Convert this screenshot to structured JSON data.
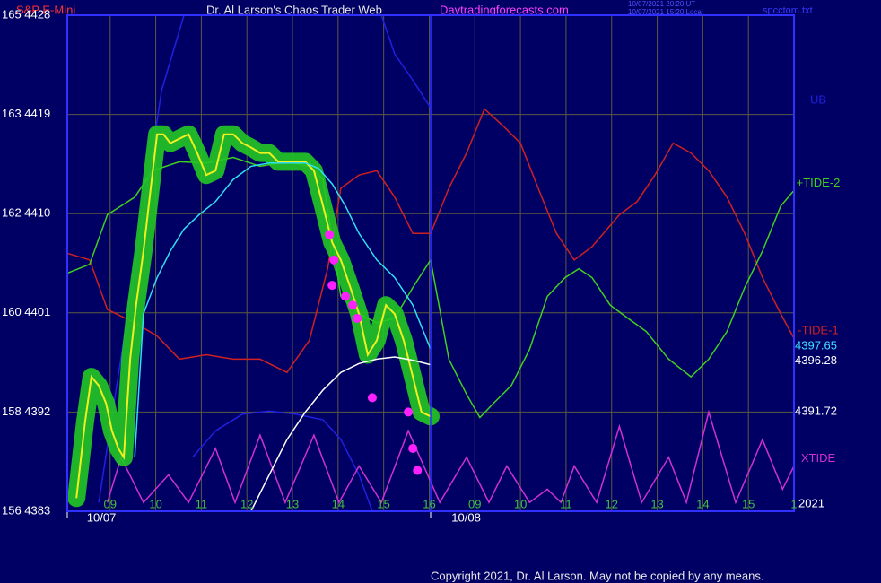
{
  "chart_data": {
    "type": "line",
    "instrument": "S&P E-Mini",
    "title": "Dr. Al Larson's Chaos Trader Web",
    "website": "Daytradingforecasts.com",
    "timestamps": [
      "10/07/2021 20:20 UT",
      "10/07/2021 15:20 Local"
    ],
    "file": "spcctom.txt",
    "copyright": "Copyright 2021, Dr. Al Larson. May not be copied by any means.",
    "year_label": "2021",
    "day_labels": [
      "10/07",
      "10/08"
    ],
    "grid": true,
    "xlim": [
      0.06,
      16
    ],
    "ylim": [
      4383,
      4428
    ],
    "xticks": [
      {
        "value": 1,
        "label": "09"
      },
      {
        "value": 2,
        "label": "10"
      },
      {
        "value": 3,
        "label": "11"
      },
      {
        "value": 4,
        "label": "12"
      },
      {
        "value": 5,
        "label": "13"
      },
      {
        "value": 6,
        "label": "14"
      },
      {
        "value": 7,
        "label": "15"
      },
      {
        "value": 8,
        "label": "16"
      },
      {
        "value": 9,
        "label": "09"
      },
      {
        "value": 10,
        "label": "10"
      },
      {
        "value": 11,
        "label": "11"
      },
      {
        "value": 12,
        "label": "12"
      },
      {
        "value": 13,
        "label": "13"
      },
      {
        "value": 14,
        "label": "14"
      },
      {
        "value": 15,
        "label": "15"
      },
      {
        "value": 16,
        "label": "1"
      }
    ],
    "yticks": [
      {
        "value": 4383,
        "label": "156 4383"
      },
      {
        "value": 4392,
        "label": "158 4392"
      },
      {
        "value": 4401,
        "label": "160 4401"
      },
      {
        "value": 4410,
        "label": "162 4410"
      },
      {
        "value": 4419,
        "label": "163 4419"
      },
      {
        "value": 4428,
        "label": "165 4428"
      }
    ],
    "series": [
      {
        "name": "-TIDE-1",
        "color": "#d02020",
        "x": [
          0.06,
          0.55,
          0.94,
          1.54,
          2.03,
          2.52,
          3.11,
          3.7,
          4.29,
          4.88,
          5.37,
          5.77,
          6.06,
          6.46,
          6.85,
          7.24,
          7.64,
          8.03,
          8.43,
          8.82,
          9.21,
          9.61,
          10.0,
          10.39,
          10.79,
          11.18,
          11.57,
          12.17,
          12.56,
          12.95,
          13.35,
          13.74,
          14.13,
          14.53,
          14.92,
          15.31,
          15.71,
          16.0
        ],
        "values": [
          4406.4,
          4405.8,
          4401.3,
          4400.1,
          4398.9,
          4396.8,
          4397.2,
          4396.8,
          4396.8,
          4395.6,
          4398.5,
          4405.0,
          4412.3,
          4413.5,
          4413.9,
          4411.5,
          4408.2,
          4408.2,
          4412.3,
          4415.5,
          4419.5,
          4418.0,
          4416.4,
          4412.3,
          4408.2,
          4405.8,
          4407.0,
          4409.9,
          4411.1,
          4413.5,
          4416.4,
          4415.5,
          4413.9,
          4411.5,
          4408.2,
          4404.2,
          4400.9,
          4398.7
        ]
      },
      {
        "name": "+TIDE-2",
        "color": "#40d020",
        "x": [
          0.06,
          0.55,
          0.94,
          1.54,
          1.93,
          2.52,
          3.11,
          3.7,
          4.29,
          4.88,
          5.37,
          5.67,
          6.06,
          6.46,
          6.85,
          7.24,
          7.64,
          8.03,
          8.43,
          8.82,
          9.11,
          9.41,
          9.8,
          10.2,
          10.59,
          10.98,
          11.28,
          11.57,
          11.97,
          12.36,
          12.76,
          13.25,
          13.74,
          14.13,
          14.53,
          14.92,
          15.31,
          15.71,
          16.0
        ],
        "values": [
          4404.6,
          4405.4,
          4409.9,
          4411.5,
          4413.9,
          4414.7,
          4414.6,
          4415.1,
          4414.3,
          4414.7,
          4414.3,
          4413.1,
          4402.5,
          4400.9,
          4400.1,
          4400.5,
          4403.3,
          4405.8,
          4396.8,
          4393.6,
          4391.5,
          4392.8,
          4394.4,
          4397.7,
          4402.5,
          4404.2,
          4405.0,
          4404.2,
          4401.7,
          4400.5,
          4399.3,
          4396.8,
          4395.2,
          4396.8,
          4399.3,
          4403.3,
          4406.6,
          4410.7,
          4412.1
        ]
      },
      {
        "name": "UB",
        "color": "#2020e0",
        "x": [
          0.75,
          1.54,
          2.13,
          2.62,
          null,
          6.95,
          7.24,
          7.64,
          8.03
        ],
        "values": [
          4383.8,
          4405.0,
          4421.2,
          4428.0,
          null,
          4428.0,
          4424.5,
          4422.1,
          4419.6
        ]
      },
      {
        "color": "#2020e0",
        "x": [
          2.81,
          3.31,
          3.9,
          4.49,
          5.08,
          5.67,
          6.06,
          6.46,
          6.75
        ],
        "values": [
          4387.9,
          4390.3,
          4391.8,
          4392.1,
          4391.8,
          4391.3,
          4389.5,
          4386.3,
          4383.0
        ]
      },
      {
        "name": "XTIDE",
        "color": "#d030d0",
        "x": [
          0.94,
          1.24,
          1.73,
          2.28,
          2.72,
          3.31,
          3.74,
          4.29,
          4.84,
          5.47,
          6.02,
          6.46,
          6.95,
          7.54,
          8.23,
          8.82,
          9.31,
          9.7,
          10.2,
          10.59,
          10.89,
          11.18,
          11.67,
          12.17,
          12.66,
          13.25,
          13.64,
          14.13,
          14.72,
          15.31,
          15.75,
          16.0
        ],
        "values": [
          4383.8,
          4387.9,
          4383.8,
          4386.3,
          4383.8,
          4388.7,
          4383.8,
          4389.9,
          4383.8,
          4389.9,
          4383.8,
          4387.1,
          4383.8,
          4390.3,
          4383.8,
          4387.9,
          4383.8,
          4387.1,
          4383.8,
          4385.0,
          4383.8,
          4387.1,
          4383.8,
          4390.7,
          4383.8,
          4387.9,
          4383.8,
          4392.0,
          4383.8,
          4389.5,
          4385.0,
          4387.1
        ]
      },
      {
        "color": "#f0f020",
        "halo": "#22c822",
        "x": [
          0.26,
          0.45,
          0.59,
          0.75,
          0.91,
          1.04,
          1.18,
          1.3,
          1.44,
          1.57,
          1.73,
          1.89,
          2.03,
          2.17,
          2.32,
          2.52,
          2.72,
          2.91,
          3.11,
          3.31,
          3.5,
          3.7,
          3.9,
          4.09,
          4.29,
          4.49,
          4.69,
          4.88,
          5.08,
          5.28,
          5.47,
          5.67,
          5.87,
          6.06,
          6.26,
          6.46,
          6.65,
          6.85,
          7.05,
          7.24,
          7.44,
          7.64,
          7.83,
          8.03
        ],
        "values": [
          4384.2,
          4391.1,
          4395.2,
          4394.4,
          4392.8,
          4390.3,
          4388.7,
          4387.9,
          4396.8,
          4401.7,
          4406.6,
          4412.3,
          4417.2,
          4417.2,
          4416.4,
          4416.8,
          4417.2,
          4415.5,
          4413.5,
          4413.9,
          4417.2,
          4417.2,
          4416.4,
          4416.0,
          4415.5,
          4415.5,
          4414.7,
          4414.7,
          4414.7,
          4414.7,
          4413.9,
          4410.7,
          4407.4,
          4405.8,
          4403.4,
          4400.9,
          4397.2,
          4398.5,
          4401.7,
          4400.9,
          4398.5,
          4395.2,
          4392.0,
          4391.6
        ]
      },
      {
        "color": "#30e0f0",
        "x": [
          1.54,
          1.73,
          2.03,
          2.32,
          2.62,
          2.95,
          3.31,
          3.7,
          4.09,
          4.49,
          4.88,
          5.28,
          5.57,
          5.87,
          6.16,
          6.46,
          6.85,
          7.24,
          7.64,
          8.03
        ],
        "values": [
          4387.9,
          4400.9,
          4404.2,
          4406.6,
          4408.6,
          4409.9,
          4411.1,
          4413.1,
          4414.3,
          4414.6,
          4414.6,
          4414.6,
          4414.1,
          4412.7,
          4410.7,
          4408.2,
          4405.8,
          4404.2,
          4401.7,
          4397.7
        ]
      },
      {
        "color": "#ffffff",
        "x": [
          4.09,
          4.49,
          4.88,
          5.28,
          5.67,
          6.06,
          6.46,
          6.85,
          7.24,
          7.64,
          8.03
        ],
        "values": [
          4383.0,
          4386.3,
          4389.5,
          4392.0,
          4394.0,
          4395.6,
          4396.4,
          4396.8,
          4397.0,
          4396.7,
          4396.3
        ]
      },
      {
        "type": "scatter",
        "color": "#ff20ff",
        "x": [
          5.81,
          5.91,
          5.87,
          6.16,
          6.32,
          6.42,
          6.75,
          7.54,
          7.64,
          7.74
        ],
        "values": [
          4408.1,
          4405.8,
          4403.5,
          4402.5,
          4401.7,
          4400.5,
          4393.3,
          4392.0,
          4388.7,
          4386.7
        ]
      }
    ],
    "last_values": [
      4397.65,
      4396.28,
      4391.72
    ],
    "last_value_colors": [
      "#40e0ff",
      "#ffffff",
      "#ffffff"
    ]
  }
}
